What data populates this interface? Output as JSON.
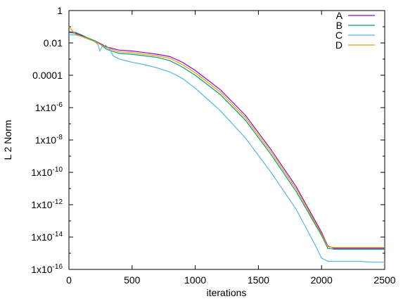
{
  "chart_data": {
    "type": "line",
    "title": "",
    "xlabel": "iterations",
    "ylabel": "L 2 Norm",
    "xlim": [
      0,
      2500
    ],
    "ylim_log10": [
      -16,
      0
    ],
    "y_scale": "log",
    "grid": false,
    "legend_position": "top-right",
    "x_ticks": [
      {
        "value": 0,
        "label": "0"
      },
      {
        "value": 500,
        "label": "500"
      },
      {
        "value": 1000,
        "label": "1000"
      },
      {
        "value": 1500,
        "label": "1500"
      },
      {
        "value": 2000,
        "label": "2000"
      },
      {
        "value": 2500,
        "label": "2500"
      }
    ],
    "y_ticks": [
      {
        "log10": 0,
        "base": "1",
        "exp": ""
      },
      {
        "log10": -2,
        "base": "0.01",
        "exp": ""
      },
      {
        "log10": -4,
        "base": "0.0001",
        "exp": ""
      },
      {
        "log10": -6,
        "base": "1x10",
        "exp": "-6"
      },
      {
        "log10": -8,
        "base": "1x10",
        "exp": "-8"
      },
      {
        "log10": -10,
        "base": "1x10",
        "exp": "-10"
      },
      {
        "log10": -12,
        "base": "1x10",
        "exp": "-12"
      },
      {
        "log10": -14,
        "base": "1x10",
        "exp": "-14"
      },
      {
        "log10": -16,
        "base": "1x10",
        "exp": "-16"
      }
    ],
    "series": [
      {
        "name": "A",
        "color": "#9400d3",
        "x": [
          0,
          50,
          100,
          150,
          200,
          250,
          300,
          400,
          500,
          600,
          700,
          800,
          900,
          1000,
          1200,
          1400,
          1600,
          1800,
          2000,
          2050,
          2100,
          2200,
          2300,
          2400,
          2500
        ],
        "log10_y": [
          -1.35,
          -1.4,
          -1.55,
          -1.7,
          -1.85,
          -2.05,
          -2.25,
          -2.45,
          -2.5,
          -2.6,
          -2.7,
          -2.85,
          -3.2,
          -3.7,
          -4.9,
          -6.5,
          -8.6,
          -10.9,
          -13.7,
          -14.55,
          -14.7,
          -14.7,
          -14.7,
          -14.7,
          -14.7
        ]
      },
      {
        "name": "B",
        "color": "#009e73",
        "x": [
          0,
          50,
          100,
          150,
          200,
          250,
          300,
          400,
          500,
          600,
          700,
          800,
          900,
          1000,
          1200,
          1400,
          1600,
          1800,
          2000,
          2050,
          2100,
          2200,
          2300,
          2400,
          2500
        ],
        "log10_y": [
          -1.3,
          -1.35,
          -1.5,
          -1.7,
          -1.85,
          -2.1,
          -2.4,
          -2.65,
          -2.7,
          -2.8,
          -2.9,
          -3.1,
          -3.5,
          -4.0,
          -5.2,
          -6.8,
          -8.9,
          -11.2,
          -13.9,
          -14.7,
          -14.75,
          -14.75,
          -14.75,
          -14.75,
          -14.75
        ]
      },
      {
        "name": "C",
        "color": "#56b4e9",
        "x": [
          0,
          50,
          100,
          150,
          200,
          230,
          245,
          260,
          290,
          320,
          350,
          400,
          500,
          600,
          700,
          800,
          900,
          1000,
          1200,
          1400,
          1600,
          1800,
          1950,
          2000,
          2050,
          2100,
          2200,
          2300,
          2400,
          2500
        ],
        "log10_y": [
          -1.5,
          -1.5,
          -1.6,
          -1.75,
          -1.9,
          -2.1,
          -2.5,
          -2.25,
          -2.15,
          -2.35,
          -2.8,
          -3.0,
          -3.2,
          -3.35,
          -3.55,
          -3.8,
          -4.2,
          -4.8,
          -6.2,
          -7.9,
          -10.0,
          -12.3,
          -14.5,
          -15.3,
          -15.5,
          -15.5,
          -15.5,
          -15.5,
          -15.55,
          -15.55
        ]
      },
      {
        "name": "D",
        "color": "#e69f00",
        "x": [
          0,
          50,
          100,
          150,
          200,
          250,
          300,
          400,
          500,
          600,
          700,
          800,
          900,
          1000,
          1200,
          1400,
          1600,
          1800,
          2000,
          2050,
          2100,
          2200,
          2300,
          2400,
          2500
        ],
        "log10_y": [
          -1.0,
          -1.45,
          -1.6,
          -1.75,
          -1.9,
          -2.1,
          -2.3,
          -2.55,
          -2.6,
          -2.7,
          -2.8,
          -2.95,
          -3.35,
          -3.85,
          -5.05,
          -6.65,
          -8.75,
          -11.05,
          -13.8,
          -14.6,
          -14.65,
          -14.65,
          -14.65,
          -14.65,
          -14.65
        ]
      }
    ]
  }
}
